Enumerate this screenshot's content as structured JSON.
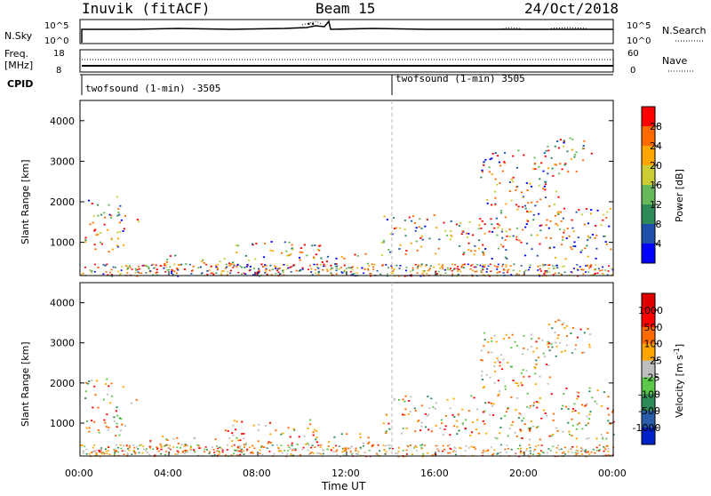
{
  "header": {
    "title": "Inuvik (fitACF)",
    "beam": "Beam 15",
    "date": "24/Oct/2018"
  },
  "sky_panel": {
    "left_label": "N.Sky",
    "left_ticks": [
      "10^5",
      "10^0"
    ],
    "right_ticks": [
      "10^5",
      "10^0"
    ],
    "right_label": "N.Search"
  },
  "freq_panel": {
    "left_label_line1": "Freq.",
    "left_label_line2": "[MHz]",
    "left_ticks": [
      "18",
      "8"
    ],
    "right_ticks": [
      "60",
      "0"
    ],
    "right_label": "Nave"
  },
  "cpid_panel": {
    "label": "CPID",
    "segments": [
      {
        "text": "twofsound (1-min) -3505",
        "start_hour": 0
      },
      {
        "text": "twofsound (1-min) 3505",
        "start_hour": 14
      }
    ]
  },
  "x_axis": {
    "label": "Time UT",
    "ticks": [
      "00:00",
      "04:00",
      "08:00",
      "12:00",
      "16:00",
      "20:00",
      "00:00"
    ]
  },
  "power_panel": {
    "ylabel": "Slant Range [km]",
    "yticks": [
      "4000",
      "3000",
      "2000",
      "1000"
    ],
    "colorbar_label": "Power [dB]",
    "colorbar_ticks": [
      "28",
      "24",
      "20",
      "16",
      "12",
      "8",
      "4"
    ],
    "colors": [
      "#0000ff",
      "#1f4fa8",
      "#2e8b57",
      "#66b85a",
      "#cccc33",
      "#ffa500",
      "#ff6a00",
      "#ff0000"
    ]
  },
  "velocity_panel": {
    "ylabel": "Slant Range [km]",
    "yticks": [
      "4000",
      "3000",
      "2000",
      "1000"
    ],
    "colorbar_label": "Velocity [m s",
    "colorbar_label_sup": "-1",
    "colorbar_label_end": "]",
    "colorbar_ticks": [
      "1000",
      "500",
      "100",
      "25",
      "-25",
      "-100",
      "-500",
      "-1000"
    ],
    "colors": [
      "#0020c8",
      "#2a5ca8",
      "#2e8b57",
      "#5cc84a",
      "#bfbfbf",
      "#ffa500",
      "#ff6a00",
      "#ff0000",
      "#e00000"
    ]
  },
  "chart_data": {
    "type": "heatmap",
    "x_range_hours": [
      0,
      24
    ],
    "y_range_km": [
      180,
      4500
    ],
    "scatter_regions": [
      {
        "x": [
          0.2,
          2.0
        ],
        "y": [
          650,
          2150
        ],
        "level": "high"
      },
      {
        "x": [
          2.2,
          2.7
        ],
        "y": [
          1450,
          1700
        ],
        "level": "mid"
      },
      {
        "x": [
          3.0,
          6.5
        ],
        "y": [
          300,
          700
        ],
        "level": "low"
      },
      {
        "x": [
          6.5,
          10.8
        ],
        "y": [
          300,
          1100
        ],
        "level": "high"
      },
      {
        "x": [
          10.8,
          13.0
        ],
        "y": [
          250,
          750
        ],
        "level": "mid"
      },
      {
        "x": [
          13.5,
          18.5
        ],
        "y": [
          700,
          1700
        ],
        "level": "high"
      },
      {
        "x": [
          18.5,
          24.0
        ],
        "y": [
          600,
          1900
        ],
        "level": "high"
      },
      {
        "x": [
          18.0,
          21.5
        ],
        "y": [
          1900,
          3300
        ],
        "level": "mid"
      },
      {
        "x": [
          21.0,
          23.0
        ],
        "y": [
          2700,
          3600
        ],
        "level": "low"
      }
    ]
  }
}
